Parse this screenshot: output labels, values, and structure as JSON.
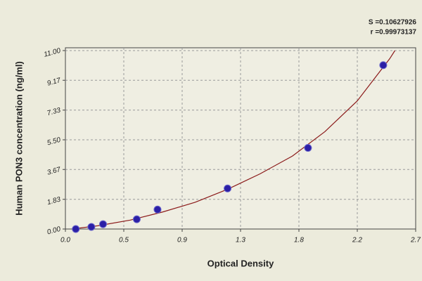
{
  "chart_data": {
    "type": "scatter",
    "x_label": "Optical Density",
    "y_label": "Human PON3 concentration (ng/ml)",
    "annotations": [
      "S =0.10627926",
      "r =0.99973137"
    ],
    "xlim": [
      0,
      2.7
    ],
    "ylim": [
      0,
      11
    ],
    "xticks": [
      {
        "value": 0,
        "label": "0.0"
      },
      {
        "value": 0.45,
        "label": "0.5"
      },
      0.9,
      {
        "value": 1.35,
        "label": "1.3"
      },
      1.8,
      {
        "value": 2.25,
        "label": "2.2"
      },
      2.7
    ],
    "yticks": [
      {
        "value": 0,
        "label": "0.00"
      },
      1.83,
      3.67,
      {
        "value": 5.5,
        "label": "5.50"
      },
      7.33,
      9.17,
      {
        "value": 11,
        "label": "11.00"
      }
    ],
    "grid": true,
    "points": {
      "color": "#2b1fa6",
      "x": [
        0.08,
        0.2,
        0.29,
        0.55,
        0.71,
        1.25,
        1.87,
        2.45
      ],
      "y": [
        0,
        0.13,
        0.3,
        0.6,
        1.2,
        2.5,
        5.0,
        10.1
      ]
    },
    "curve": {
      "color": "#8b1a1a",
      "x": [
        0.05,
        0.25,
        0.5,
        0.75,
        1.0,
        1.25,
        1.5,
        1.75,
        2.0,
        2.25,
        2.5,
        2.54
      ],
      "y": [
        0,
        0.2,
        0.55,
        1.05,
        1.65,
        2.45,
        3.4,
        4.5,
        6.0,
        7.9,
        10.5,
        11
      ]
    }
  }
}
